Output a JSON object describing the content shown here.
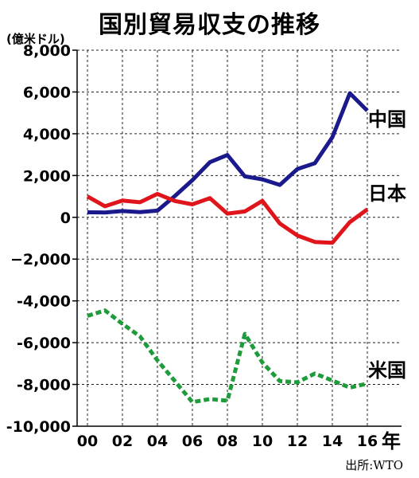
{
  "chart_data": {
    "type": "line",
    "title": "国別貿易収支の推移",
    "ylabel": "(億米ドル)",
    "xlabel": "年",
    "source": "出所:WTO",
    "ylim": [
      -10000,
      8000
    ],
    "yticks": [
      8000,
      6000,
      4000,
      2000,
      0,
      -2000,
      -4000,
      -6000,
      -8000,
      -10000
    ],
    "ytick_labels": [
      "8,000",
      "6,000",
      "4,000",
      "2,000",
      "0",
      "−2,000",
      "-4,000",
      "-6,000",
      "-8,000",
      "-10,000"
    ],
    "x": [
      2000,
      2001,
      2002,
      2003,
      2004,
      2005,
      2006,
      2007,
      2008,
      2009,
      2010,
      2011,
      2012,
      2013,
      2014,
      2015,
      2016
    ],
    "xtick_labels": [
      "00",
      "02",
      "04",
      "06",
      "08",
      "10",
      "12",
      "14",
      "16"
    ],
    "xtick_values": [
      2000,
      2002,
      2004,
      2006,
      2008,
      2010,
      2012,
      2014,
      2016
    ],
    "xlim": [
      2000,
      2016
    ],
    "grid": "horizontal-dashed",
    "series": [
      {
        "name": "中国",
        "color": "#1a1a8c",
        "style": "solid",
        "values": [
          240,
          230,
          300,
          250,
          320,
          1020,
          1780,
          2640,
          2980,
          1960,
          1820,
          1550,
          2310,
          2590,
          3830,
          5940,
          5100
        ]
      },
      {
        "name": "日本",
        "color": "#e0151b",
        "style": "solid",
        "values": [
          1000,
          530,
          800,
          720,
          1120,
          780,
          620,
          920,
          180,
          280,
          790,
          -300,
          -870,
          -1180,
          -1220,
          -230,
          380
        ]
      },
      {
        "name": "米国",
        "color": "#1e9b3a",
        "style": "dashed",
        "values": [
          -4720,
          -4460,
          -5100,
          -5700,
          -6850,
          -7840,
          -8850,
          -8700,
          -8780,
          -5580,
          -6950,
          -7840,
          -7900,
          -7480,
          -7810,
          -8150,
          -7960
        ]
      }
    ]
  }
}
